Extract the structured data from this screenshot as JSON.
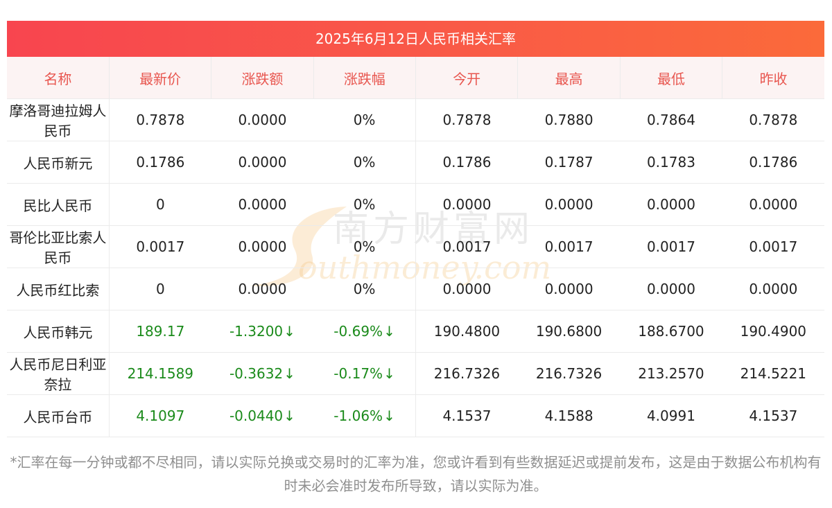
{
  "title": "2025年6月12日人民币相关汇率",
  "columns": [
    "名称",
    "最新价",
    "涨跌额",
    "涨跌幅",
    "今开",
    "最高",
    "最低",
    "昨收"
  ],
  "rows": [
    {
      "name": "摩洛哥迪拉姆人民币",
      "latest": "0.7878",
      "change": "0.0000",
      "change_pct": "0%",
      "open": "0.7878",
      "high": "0.7880",
      "low": "0.7864",
      "prev_close": "0.7878",
      "trend": "flat"
    },
    {
      "name": "人民币新元",
      "latest": "0.1786",
      "change": "0.0000",
      "change_pct": "0%",
      "open": "0.1786",
      "high": "0.1787",
      "low": "0.1783",
      "prev_close": "0.1786",
      "trend": "flat"
    },
    {
      "name": "民比人民币",
      "latest": "0",
      "change": "0.0000",
      "change_pct": "0%",
      "open": "0.0000",
      "high": "0.0000",
      "low": "0.0000",
      "prev_close": "0.0000",
      "trend": "flat"
    },
    {
      "name": "哥伦比亚比索人民币",
      "latest": "0.0017",
      "change": "0.0000",
      "change_pct": "0%",
      "open": "0.0017",
      "high": "0.0017",
      "low": "0.0017",
      "prev_close": "0.0017",
      "trend": "flat"
    },
    {
      "name": "人民币红比索",
      "latest": "0",
      "change": "0.0000",
      "change_pct": "0%",
      "open": "0.0000",
      "high": "0.0000",
      "low": "0.0000",
      "prev_close": "0.0000",
      "trend": "flat"
    },
    {
      "name": "人民币韩元",
      "latest": "189.17",
      "change": "-1.3200",
      "change_pct": "-0.69%",
      "open": "190.4800",
      "high": "190.6800",
      "low": "188.6700",
      "prev_close": "190.4900",
      "trend": "down"
    },
    {
      "name": "人民币尼日利亚奈拉",
      "latest": "214.1589",
      "change": "-0.3632",
      "change_pct": "-0.17%",
      "open": "216.7326",
      "high": "216.7326",
      "low": "213.2570",
      "prev_close": "214.5221",
      "trend": "down"
    },
    {
      "name": "人民币台币",
      "latest": "4.1097",
      "change": "-0.0440",
      "change_pct": "-1.06%",
      "open": "4.1537",
      "high": "4.1588",
      "low": "4.0991",
      "prev_close": "4.1537",
      "trend": "down"
    }
  ],
  "down_arrow": "↓",
  "note": "*汇率在每一分钟或都不尽相同，请以实际兑换或交易时的汇率为准，您或许看到有些数据延迟或提前发布，这是由于数据公布机构有时未必会准时发布所导致，请以实际为准。",
  "watermark": {
    "cn": "南方财富网",
    "en": "outhmoney.com",
    "letter": "S"
  },
  "colors": {
    "title_from": "#f8454f",
    "title_to": "#fb6a3a",
    "header_text": "#e8564f",
    "header_bg": "#fcf3f3",
    "down": "#1a8a1a"
  }
}
